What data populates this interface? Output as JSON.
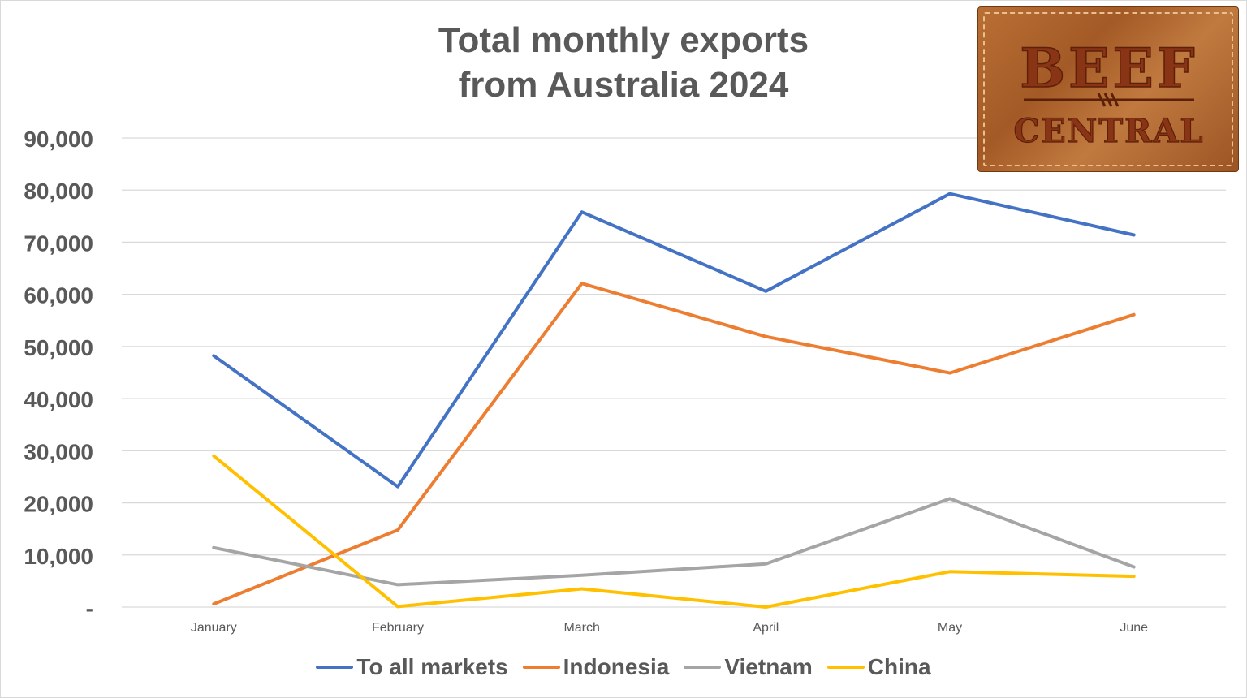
{
  "chart_data": {
    "type": "line",
    "title": [
      "Total monthly exports",
      "from Australia 2024"
    ],
    "categories": [
      "January",
      "February",
      "March",
      "April",
      "May",
      "June"
    ],
    "y_tick_labels": [
      "-",
      "10,000",
      "20,000",
      "30,000",
      "40,000",
      "50,000",
      "60,000",
      "70,000",
      "80,000",
      "90,000"
    ],
    "ylim": [
      0,
      90000
    ],
    "grid": true,
    "legend_position": "bottom",
    "series": [
      {
        "name": "To all markets",
        "color": "#4472c4",
        "values": [
          48200,
          23100,
          75800,
          60600,
          79300,
          71400
        ]
      },
      {
        "name": "Indonesia",
        "color": "#ed7d31",
        "values": [
          600,
          14800,
          62100,
          51900,
          44900,
          56100
        ]
      },
      {
        "name": "Vietnam",
        "color": "#a5a5a5",
        "values": [
          11400,
          4300,
          6100,
          8300,
          20800,
          7700
        ]
      },
      {
        "name": "China",
        "color": "#ffc000",
        "values": [
          29000,
          100,
          3500,
          0,
          6800,
          5900
        ]
      }
    ]
  },
  "logo": {
    "line1": "BEEF",
    "line2": "CENTRAL",
    "colors": {
      "leather": "#b06a32",
      "letters": "#8a3416",
      "stitch": "#e9c08f"
    }
  }
}
